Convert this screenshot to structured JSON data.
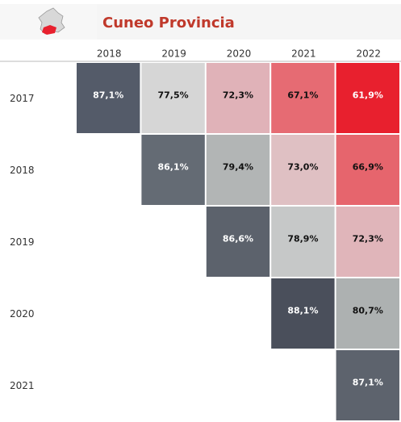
{
  "chart_data": {
    "type": "heatmap",
    "title": "Cuneo Provincia",
    "x_categories": [
      "2018",
      "2019",
      "2020",
      "2021",
      "2022"
    ],
    "y_categories": [
      "2017",
      "2018",
      "2019",
      "2020",
      "2021"
    ],
    "values": [
      [
        87.1,
        77.5,
        72.3,
        67.1,
        61.9
      ],
      [
        null,
        86.1,
        79.4,
        73.0,
        66.9
      ],
      [
        null,
        null,
        86.6,
        78.9,
        72.3
      ],
      [
        null,
        null,
        null,
        88.1,
        80.7
      ],
      [
        null,
        null,
        null,
        null,
        87.1
      ]
    ],
    "value_labels": [
      [
        "87,1%",
        "77,5%",
        "72,3%",
        "67,1%",
        "61,9%"
      ],
      [
        null,
        "86,1%",
        "79,4%",
        "73,0%",
        "66,9%"
      ],
      [
        null,
        null,
        "86,6%",
        "78,9%",
        "72,3%"
      ],
      [
        null,
        null,
        null,
        "88,1%",
        "80,7%"
      ],
      [
        null,
        null,
        null,
        null,
        "87,1%"
      ]
    ],
    "colors": [
      [
        "#545b69",
        "#d6d6d6",
        "#e0b2b8",
        "#e66b73",
        "#e8202e"
      ],
      [
        null,
        "#646b74",
        "#b2b5b5",
        "#dfc0c3",
        "#e6656d"
      ],
      [
        null,
        null,
        "#5c626c",
        "#c6c8c8",
        "#e0b5ba"
      ],
      [
        null,
        null,
        null,
        "#4a4f5b",
        "#adb1b1"
      ],
      [
        null,
        null,
        null,
        null,
        "#5d636d"
      ]
    ]
  }
}
